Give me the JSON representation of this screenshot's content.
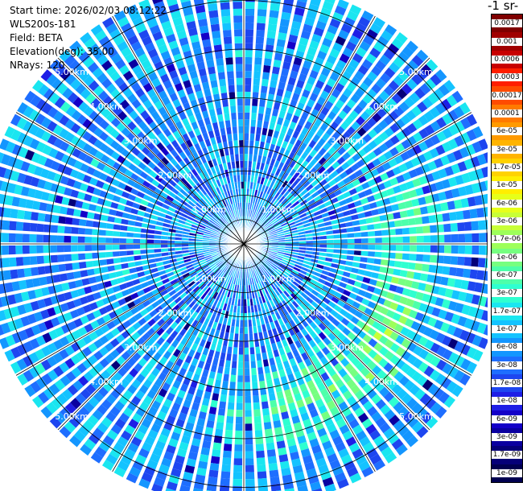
{
  "info": {
    "start_time": "Start time: 2026/02/03 08:12:22",
    "instrument": "WLS200s-181",
    "field": "Field: BETA",
    "elevation": "Elevation(deg): 35.00",
    "nrays": "NRays: 120"
  },
  "colorbar": {
    "unit_label": "-1 sr-",
    "tick_labels": [
      "0.0017",
      "0.001",
      "0.0006",
      "0.0003",
      "0.00017",
      "0.0001",
      "6e-05",
      "3e-05",
      "1.7e-05",
      "1e-05",
      "6e-06",
      "3e-06",
      "1.7e-06",
      "1e-06",
      "6e-07",
      "3e-07",
      "1.7e-07",
      "1e-07",
      "6e-08",
      "3e-08",
      "1.7e-08",
      "1e-08",
      "6e-09",
      "3e-09",
      "1.7e-09",
      "1e-09"
    ],
    "colors": [
      "#7f0000",
      "#a00000",
      "#c80000",
      "#ff1e00",
      "#ff4b00",
      "#ff7a00",
      "#ff9a00",
      "#ffb400",
      "#ffd200",
      "#ffee00",
      "#e6ff1a",
      "#c8ff37",
      "#9dff5a",
      "#76ff80",
      "#4dffaa",
      "#2fffd0",
      "#1ae6f0",
      "#14c3ff",
      "#1496ff",
      "#1e6eff",
      "#1e46f0",
      "#1e1ee6",
      "#1400c8",
      "#0a00a0",
      "#050078",
      "#000050"
    ]
  },
  "chart_data": {
    "type": "heatmap",
    "projection": "polar PPI",
    "field": "BETA",
    "nrays": 120,
    "range_ring_labels": [
      "1.00km",
      "2.00km",
      "3.00km",
      "4.00km",
      "5.00km"
    ],
    "range_rings_km": [
      1,
      2,
      3,
      4,
      5
    ],
    "max_range_km": 5.4,
    "color_scale": "log",
    "value_range": [
      1e-09,
      0.0017
    ],
    "background_level": 6e-08,
    "enhanced_band": {
      "azimuth_deg": [
        50,
        200
      ],
      "range_km": [
        2.3,
        4.6
      ],
      "peak_level": 1.7e-06
    }
  }
}
